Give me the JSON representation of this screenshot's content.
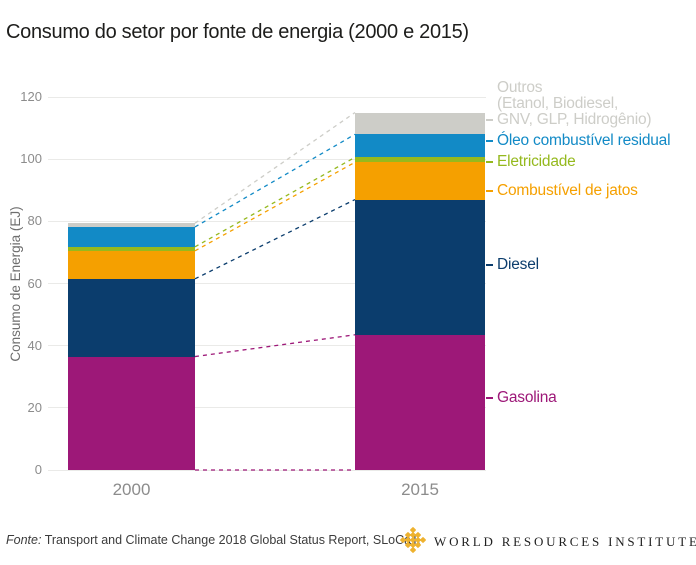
{
  "header": {
    "title": "Consumo do setor por fonte de energia (2000 e 2015)"
  },
  "chart_data": {
    "type": "bar",
    "stacked": true,
    "title": "Consumo do setor por fonte de energia (2000 e 2015)",
    "categories": [
      "2000",
      "2015"
    ],
    "series": [
      {
        "name": "Gasolina",
        "color": "#9d1878",
        "values": [
          36.5,
          43.5
        ],
        "legend_lines": [
          "Gasolina"
        ]
      },
      {
        "name": "Diesel",
        "color": "#0b3d6d",
        "values": [
          25,
          43.5
        ],
        "legend_lines": [
          "Diesel"
        ]
      },
      {
        "name": "Combustível de jatos",
        "color": "#f5a000",
        "values": [
          9,
          12
        ],
        "legend_lines": [
          "Combustível de jatos"
        ]
      },
      {
        "name": "Eletricidade",
        "color": "#95b91e",
        "values": [
          1.3,
          1.6
        ],
        "legend_lines": [
          "Eletricidade"
        ]
      },
      {
        "name": "Óleo combustível residual",
        "color": "#128ac6",
        "values": [
          6.4,
          7.4
        ],
        "legend_lines": [
          "Óleo combustível residual"
        ]
      },
      {
        "name": "Outros (Etanol, Biodiesel, GNV, GLP, Hidrogênio)",
        "color": "#cdcdc8",
        "values": [
          1.2,
          7
        ],
        "legend_lines": [
          "Outros",
          "(Etanol, Biodiesel,",
          "GNV, GLP, Hidrogênio)"
        ]
      }
    ],
    "xlabel": "",
    "ylabel": "Consumo de Energia (EJ)",
    "ylim": [
      0,
      120
    ],
    "yticks": [
      0,
      20,
      40,
      60,
      80,
      100,
      120
    ],
    "grid": true,
    "legend_position": "right",
    "annotations": "dashed connector lines link matching stack boundaries of the 2000 and 2015 bars"
  },
  "footer": {
    "source_prefix": "Fonte:",
    "source_text": "Transport and Climate Change 2018 Global Status Report, SLoCaT.",
    "logo_text": "WORLD RESOURCES INSTITUTE"
  }
}
